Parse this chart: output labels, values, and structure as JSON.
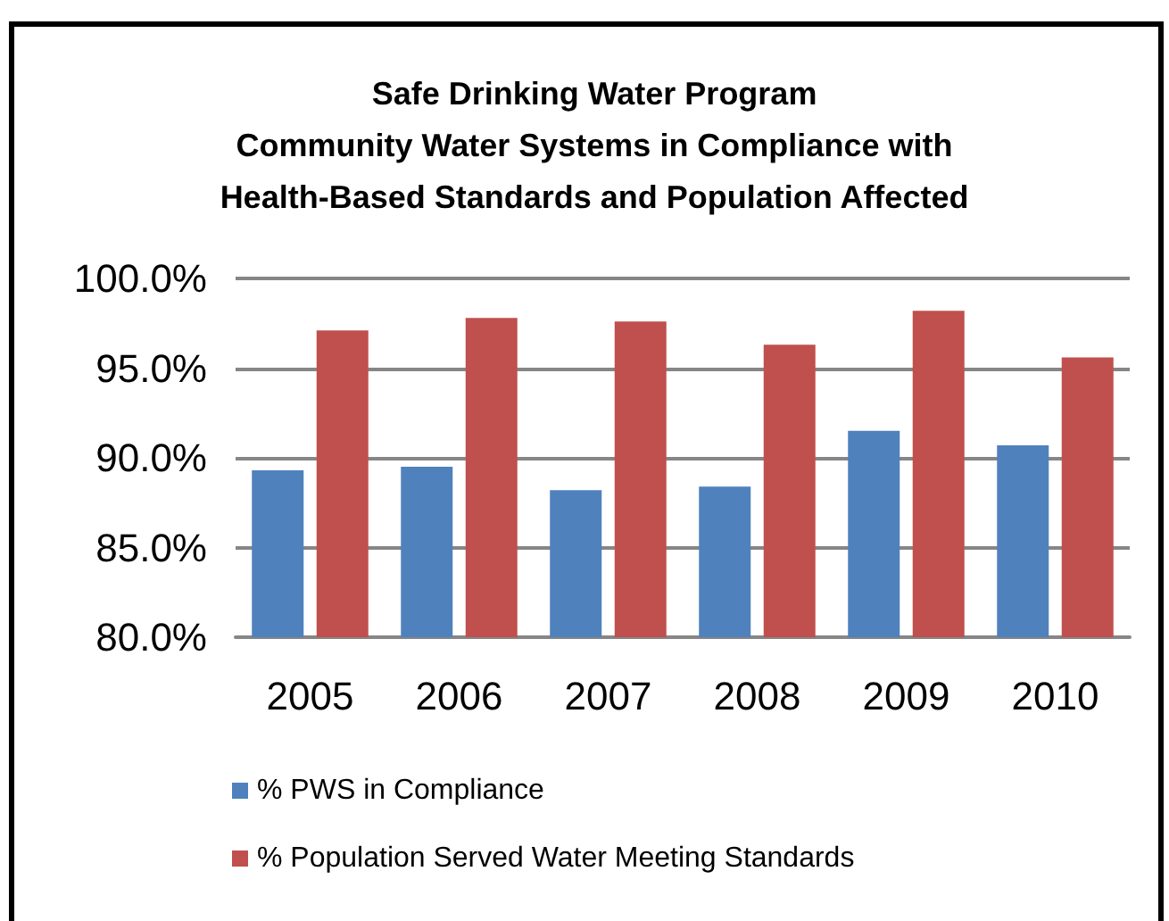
{
  "chart_data": {
    "type": "bar",
    "title": "Safe Drinking Water Program\nCommunity Water Systems in Compliance with\nHealth-Based Standards and Population Affected",
    "categories": [
      "2005",
      "2006",
      "2007",
      "2008",
      "2009",
      "2010"
    ],
    "series": [
      {
        "name": "% PWS in Compliance",
        "color": "#4f81bd",
        "values": [
          89.3,
          89.5,
          88.2,
          88.4,
          91.5,
          90.7
        ]
      },
      {
        "name": "% Population Served Water Meeting Standards",
        "color": "#c0504d",
        "values": [
          97.1,
          97.8,
          97.6,
          96.3,
          98.2,
          95.6
        ]
      }
    ],
    "ylim": [
      80,
      100
    ],
    "yticks": [
      {
        "value": 80,
        "label": "80.0%"
      },
      {
        "value": 85,
        "label": "85.0%"
      },
      {
        "value": 90,
        "label": "90.0%"
      },
      {
        "value": 95,
        "label": "95.0%"
      },
      {
        "value": 100,
        "label": "100.0%"
      }
    ],
    "grid": "y",
    "legend": "bottom"
  }
}
